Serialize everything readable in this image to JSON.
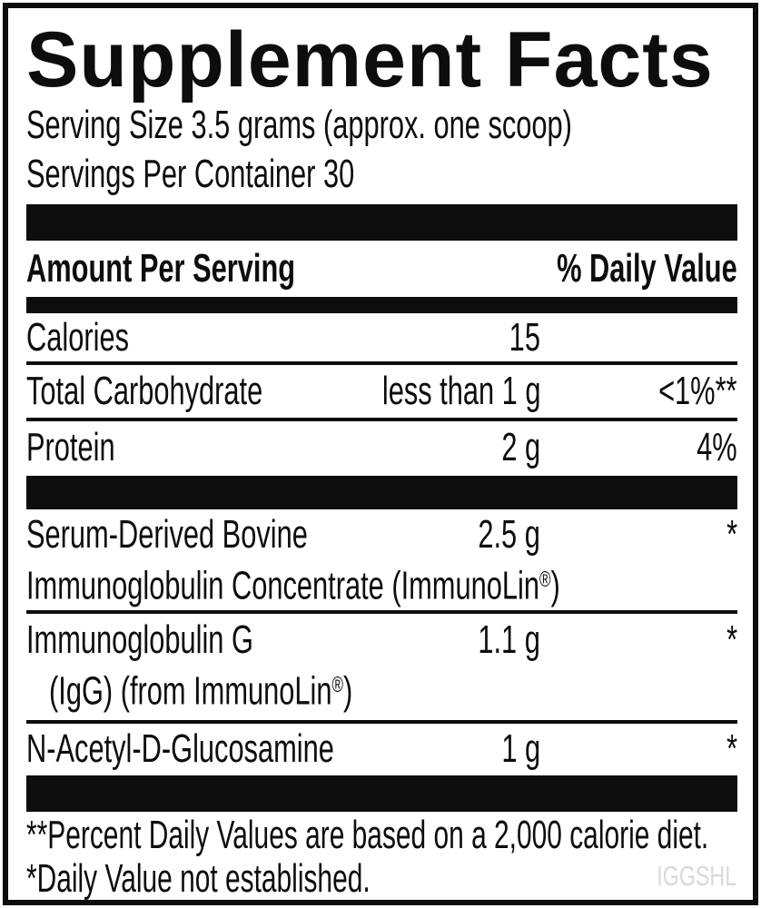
{
  "label": {
    "title": "Supplement Facts",
    "serving_size": "Serving Size 3.5 grams (approx. one scoop)",
    "servings_per_container": "Servings Per Container 30",
    "header": {
      "amount_per_serving": "Amount Per Serving",
      "daily_value": "% Daily Value"
    },
    "rows": {
      "calories": {
        "name": "Calories",
        "amount": "15",
        "dv": ""
      },
      "total_carbohydrate": {
        "name": "Total Carbohydrate",
        "amount": "less than 1 g",
        "dv": "<1%**"
      },
      "protein": {
        "name": "Protein",
        "amount": "2 g",
        "dv": "4%"
      }
    },
    "ingredients": {
      "serum": {
        "name_line1": "Serum-Derived Bovine",
        "name_line2": "Immunoglobulin Concentrate (ImmunoLin",
        "reg_mark": "®",
        "name_line2_end": ")",
        "amount": "2.5 g",
        "dv": "*"
      },
      "igg": {
        "name_line1": "Immunoglobulin G",
        "name_line2": "(IgG) (from ImmunoLin",
        "reg_mark": "®",
        "name_line2_end": ")",
        "amount": "1.1 g",
        "dv": "*"
      },
      "nag": {
        "name": "N-Acetyl-D-Glucosamine",
        "amount": "1 g",
        "dv": "*"
      }
    },
    "footnotes": {
      "line1": "**Percent Daily Values are based on a 2,000 calorie diet.",
      "line2": "*Daily Value not established."
    },
    "watermark": "IGGSHL",
    "colors": {
      "ink": "#0d0d0d",
      "watermark": "#d9d9d9",
      "background": "#ffffff"
    }
  }
}
